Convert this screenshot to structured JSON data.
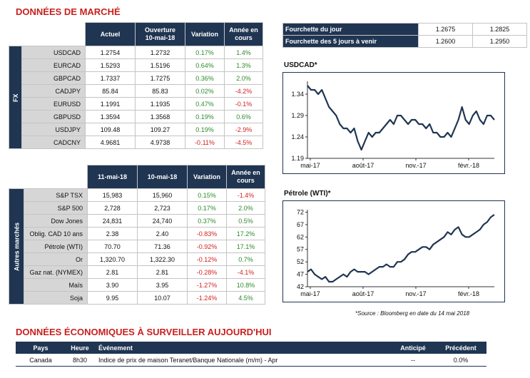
{
  "title": "DONNÉES DE MARCHÉ",
  "fx": {
    "side_label": "FX",
    "headers": [
      "Actuel",
      "Ouverture 10-mai-18",
      "Variation",
      "Année en cours"
    ],
    "rows": [
      {
        "name": "USDCAD",
        "a": "1.2754",
        "b": "1.2732",
        "v": "0.17%",
        "y": "1.4%",
        "vc": "pos",
        "yc": "pos"
      },
      {
        "name": "EURCAD",
        "a": "1.5293",
        "b": "1.5196",
        "v": "0.64%",
        "y": "1.3%",
        "vc": "pos",
        "yc": "pos"
      },
      {
        "name": "GBPCAD",
        "a": "1.7337",
        "b": "1.7275",
        "v": "0.36%",
        "y": "2.0%",
        "vc": "pos",
        "yc": "pos"
      },
      {
        "name": "CADJPY",
        "a": "85.84",
        "b": "85.83",
        "v": "0.02%",
        "y": "-4.2%",
        "vc": "pos",
        "yc": "neg"
      },
      {
        "name": "EURUSD",
        "a": "1.1991",
        "b": "1.1935",
        "v": "0.47%",
        "y": "-0.1%",
        "vc": "pos",
        "yc": "neg"
      },
      {
        "name": "GBPUSD",
        "a": "1.3594",
        "b": "1.3568",
        "v": "0.19%",
        "y": "0.6%",
        "vc": "pos",
        "yc": "pos"
      },
      {
        "name": "USDJPY",
        "a": "109.48",
        "b": "109.27",
        "v": "0.19%",
        "y": "-2.9%",
        "vc": "pos",
        "yc": "neg"
      },
      {
        "name": "CADCNY",
        "a": "4.9681",
        "b": "4.9738",
        "v": "-0.11%",
        "y": "-4.5%",
        "vc": "neg",
        "yc": "neg"
      }
    ]
  },
  "markets": {
    "side_label": "Autres marchés",
    "headers": [
      "11-mai-18",
      "10-mai-18",
      "Variation",
      "Année en cours"
    ],
    "rows": [
      {
        "name": "S&P TSX",
        "a": "15,983",
        "b": "15,960",
        "v": "0.15%",
        "y": "-1.4%",
        "vc": "pos",
        "yc": "neg"
      },
      {
        "name": "S&P 500",
        "a": "2,728",
        "b": "2,723",
        "v": "0.17%",
        "y": "2.0%",
        "vc": "pos",
        "yc": "pos"
      },
      {
        "name": "Dow Jones",
        "a": "24,831",
        "b": "24,740",
        "v": "0.37%",
        "y": "0.5%",
        "vc": "pos",
        "yc": "pos"
      },
      {
        "name": "Oblig. CAD 10 ans",
        "a": "2.38",
        "b": "2.40",
        "v": "-0.83%",
        "y": "17.2%",
        "vc": "neg",
        "yc": "pos"
      },
      {
        "name": "Pétrole (WTI)",
        "a": "70.70",
        "b": "71.36",
        "v": "-0.92%",
        "y": "17.1%",
        "vc": "neg",
        "yc": "pos"
      },
      {
        "name": "Or",
        "a": "1,320.70",
        "b": "1,322.30",
        "v": "-0.12%",
        "y": "0.7%",
        "vc": "neg",
        "yc": "pos"
      },
      {
        "name": "Gaz nat. (NYMEX)",
        "a": "2.81",
        "b": "2.81",
        "v": "-0.28%",
        "y": "-4.1%",
        "vc": "neg",
        "yc": "neg"
      },
      {
        "name": "Maïs",
        "a": "3.90",
        "b": "3.95",
        "v": "-1.27%",
        "y": "10.8%",
        "vc": "neg",
        "yc": "pos"
      },
      {
        "name": "Soja",
        "a": "9.95",
        "b": "10.07",
        "v": "-1.24%",
        "y": "4.5%",
        "vc": "neg",
        "yc": "pos"
      }
    ]
  },
  "fourchettes": [
    {
      "label": "Fourchette du jour",
      "low": "1.2675",
      "high": "1.2825"
    },
    {
      "label": "Fourchette des 5 jours à venir",
      "low": "1.2600",
      "high": "1.2950"
    }
  ],
  "chart_data": [
    {
      "type": "line",
      "title": "USDCAD*",
      "xlabel": "",
      "ylabel": "",
      "x_ticks": [
        "mai-17",
        "août-17",
        "nov.-17",
        "févr.-18"
      ],
      "y_ticks": [
        1.19,
        1.24,
        1.29,
        1.34
      ],
      "ylim": [
        1.19,
        1.37
      ],
      "x": [
        0,
        5,
        10,
        15,
        20,
        25,
        30,
        35,
        40,
        45,
        50,
        55,
        60,
        65,
        70,
        75,
        80,
        85,
        90,
        95,
        100,
        105,
        110,
        115,
        120,
        125,
        130,
        135,
        140,
        145,
        150,
        155,
        160,
        165,
        170,
        175,
        180,
        185,
        190,
        195,
        200,
        205,
        210,
        215,
        220,
        225,
        230,
        235,
        240,
        245,
        250,
        255,
        260
      ],
      "values": [
        1.36,
        1.35,
        1.35,
        1.34,
        1.35,
        1.33,
        1.31,
        1.3,
        1.29,
        1.27,
        1.26,
        1.26,
        1.25,
        1.26,
        1.23,
        1.21,
        1.23,
        1.25,
        1.24,
        1.25,
        1.25,
        1.26,
        1.27,
        1.28,
        1.27,
        1.29,
        1.29,
        1.28,
        1.27,
        1.28,
        1.28,
        1.27,
        1.27,
        1.26,
        1.27,
        1.25,
        1.25,
        1.24,
        1.24,
        1.25,
        1.24,
        1.26,
        1.28,
        1.31,
        1.28,
        1.27,
        1.29,
        1.3,
        1.28,
        1.27,
        1.29,
        1.29,
        1.28
      ]
    },
    {
      "type": "line",
      "title": "Pétrole (WTI)*",
      "xlabel": "",
      "ylabel": "",
      "x_ticks": [
        "mai-17",
        "août-17",
        "nov.-17",
        "févr.-18"
      ],
      "y_ticks": [
        42,
        47,
        52,
        57,
        62,
        67,
        72
      ],
      "ylim": [
        42,
        73
      ],
      "x": [
        0,
        5,
        10,
        15,
        20,
        25,
        30,
        35,
        40,
        45,
        50,
        55,
        60,
        65,
        70,
        75,
        80,
        85,
        90,
        95,
        100,
        105,
        110,
        115,
        120,
        125,
        130,
        135,
        140,
        145,
        150,
        155,
        160,
        165,
        170,
        175,
        180,
        185,
        190,
        195,
        200,
        205,
        210,
        215,
        220,
        225,
        230,
        235,
        240,
        245,
        250,
        255,
        260
      ],
      "values": [
        48,
        49,
        47,
        46,
        45,
        46,
        44,
        44,
        45,
        46,
        47,
        46,
        48,
        49,
        48,
        48,
        48,
        47,
        48,
        49,
        50,
        50,
        51,
        50,
        50,
        52,
        52,
        53,
        55,
        56,
        56,
        57,
        58,
        58,
        57,
        59,
        60,
        61,
        62,
        64,
        63,
        65,
        66,
        63,
        62,
        62,
        63,
        64,
        65,
        67,
        68,
        70,
        71
      ]
    }
  ],
  "source": "*Source : Bloomberg en date du  14 mai 2018",
  "eco": {
    "title": "DONNÉES ÉCONOMIQUES À SURVEILLER AUJOURD'HUI",
    "headers": [
      "Pays",
      "Heure",
      "Événement",
      "Anticipé",
      "Précédent"
    ],
    "rows": [
      {
        "pays": "Canada",
        "heure": "8h30",
        "event": "Indice de prix de maison Teranet/Banque Nationale (m/m) - Apr",
        "anticipe": "--",
        "precedent": "0.0%"
      }
    ]
  }
}
